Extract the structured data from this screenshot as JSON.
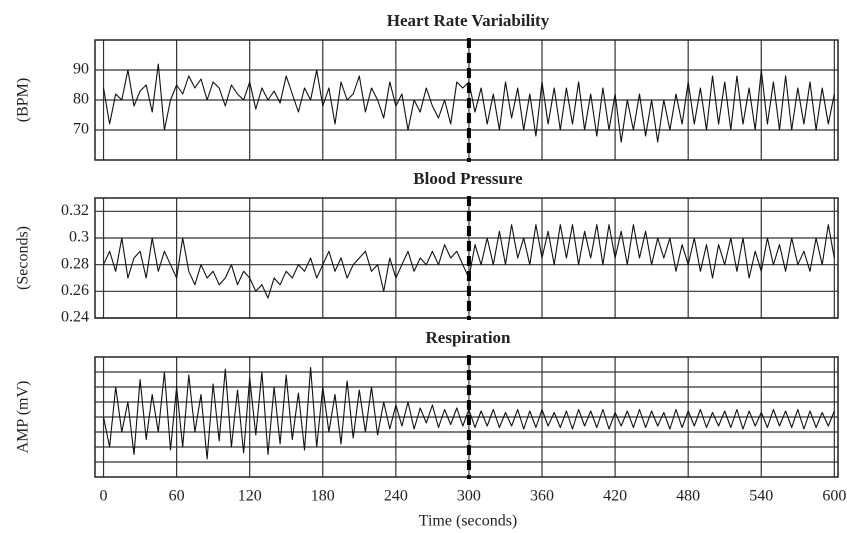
{
  "chart_data": [
    {
      "type": "line",
      "title": "Heart Rate Variability",
      "ylabel": "(BPM)",
      "x": [
        0,
        5,
        10,
        15,
        20,
        25,
        30,
        35,
        40,
        45,
        50,
        55,
        60,
        65,
        70,
        75,
        80,
        85,
        90,
        95,
        100,
        105,
        110,
        115,
        120,
        125,
        130,
        135,
        140,
        145,
        150,
        155,
        160,
        165,
        170,
        175,
        180,
        185,
        190,
        195,
        200,
        205,
        210,
        215,
        220,
        225,
        230,
        235,
        240,
        245,
        250,
        255,
        260,
        265,
        270,
        275,
        280,
        285,
        290,
        295,
        300,
        305,
        310,
        315,
        320,
        325,
        330,
        335,
        340,
        345,
        350,
        355,
        360,
        365,
        370,
        375,
        380,
        385,
        390,
        395,
        400,
        405,
        410,
        415,
        420,
        425,
        430,
        435,
        440,
        445,
        450,
        455,
        460,
        465,
        470,
        475,
        480,
        485,
        490,
        495,
        500,
        505,
        510,
        515,
        520,
        525,
        530,
        535,
        540,
        545,
        550,
        555,
        560,
        565,
        570,
        575,
        580,
        585,
        590,
        595,
        600
      ],
      "values": [
        84,
        72,
        82,
        80,
        90,
        78,
        83,
        85,
        76,
        92,
        70,
        80,
        85,
        82,
        88,
        84,
        87,
        80,
        86,
        84,
        78,
        85,
        82,
        80,
        86,
        77,
        84,
        80,
        83,
        79,
        88,
        82,
        76,
        84,
        80,
        90,
        78,
        84,
        72,
        86,
        80,
        82,
        88,
        76,
        84,
        80,
        74,
        86,
        78,
        82,
        70,
        80,
        76,
        84,
        78,
        74,
        80,
        72,
        86,
        84,
        86,
        76,
        84,
        72,
        82,
        70,
        86,
        74,
        84,
        70,
        82,
        68,
        86,
        72,
        84,
        70,
        84,
        72,
        86,
        70,
        82,
        68,
        84,
        70,
        82,
        66,
        80,
        70,
        82,
        68,
        80,
        66,
        80,
        70,
        82,
        72,
        86,
        72,
        84,
        70,
        88,
        72,
        86,
        70,
        88,
        72,
        84,
        70,
        90,
        72,
        86,
        70,
        88,
        70,
        84,
        72,
        86,
        70,
        84,
        72,
        82
      ],
      "color": "#111111",
      "xlim": [
        -7,
        603
      ],
      "xticks": [
        0,
        60,
        120,
        180,
        240,
        300,
        360,
        420,
        480,
        540,
        600
      ],
      "ylim": [
        60,
        100
      ],
      "yticks": [
        70,
        80,
        90
      ],
      "show_y_tick_labels": true,
      "show_x_tick_labels": false,
      "grid": true,
      "marker_x": 300
    },
    {
      "type": "line",
      "title": "Blood Pressure",
      "ylabel": "(Seconds)",
      "x": [
        0,
        5,
        10,
        15,
        20,
        25,
        30,
        35,
        40,
        45,
        50,
        55,
        60,
        65,
        70,
        75,
        80,
        85,
        90,
        95,
        100,
        105,
        110,
        115,
        120,
        125,
        130,
        135,
        140,
        145,
        150,
        155,
        160,
        165,
        170,
        175,
        180,
        185,
        190,
        195,
        200,
        205,
        210,
        215,
        220,
        225,
        230,
        235,
        240,
        245,
        250,
        255,
        260,
        265,
        270,
        275,
        280,
        285,
        290,
        295,
        300,
        305,
        310,
        315,
        320,
        325,
        330,
        335,
        340,
        345,
        350,
        355,
        360,
        365,
        370,
        375,
        380,
        385,
        390,
        395,
        400,
        405,
        410,
        415,
        420,
        425,
        430,
        435,
        440,
        445,
        450,
        455,
        460,
        465,
        470,
        475,
        480,
        485,
        490,
        495,
        500,
        505,
        510,
        515,
        520,
        525,
        530,
        535,
        540,
        545,
        550,
        555,
        560,
        565,
        570,
        575,
        580,
        585,
        590,
        595,
        600
      ],
      "values": [
        0.28,
        0.29,
        0.275,
        0.3,
        0.27,
        0.285,
        0.29,
        0.27,
        0.3,
        0.275,
        0.29,
        0.28,
        0.27,
        0.3,
        0.275,
        0.265,
        0.28,
        0.27,
        0.275,
        0.265,
        0.27,
        0.28,
        0.265,
        0.275,
        0.27,
        0.26,
        0.265,
        0.255,
        0.27,
        0.265,
        0.275,
        0.27,
        0.28,
        0.275,
        0.285,
        0.27,
        0.28,
        0.29,
        0.275,
        0.285,
        0.27,
        0.28,
        0.285,
        0.29,
        0.275,
        0.28,
        0.26,
        0.285,
        0.27,
        0.28,
        0.29,
        0.275,
        0.285,
        0.28,
        0.29,
        0.28,
        0.295,
        0.285,
        0.29,
        0.28,
        0.27,
        0.295,
        0.28,
        0.3,
        0.28,
        0.305,
        0.28,
        0.31,
        0.285,
        0.3,
        0.28,
        0.31,
        0.285,
        0.305,
        0.28,
        0.31,
        0.285,
        0.31,
        0.28,
        0.305,
        0.285,
        0.31,
        0.28,
        0.31,
        0.285,
        0.305,
        0.28,
        0.31,
        0.285,
        0.305,
        0.28,
        0.3,
        0.285,
        0.3,
        0.275,
        0.295,
        0.28,
        0.3,
        0.275,
        0.295,
        0.27,
        0.295,
        0.28,
        0.3,
        0.275,
        0.3,
        0.27,
        0.29,
        0.275,
        0.3,
        0.28,
        0.295,
        0.275,
        0.3,
        0.28,
        0.29,
        0.275,
        0.3,
        0.28,
        0.31,
        0.285
      ],
      "color": "#111111",
      "xlim": [
        -7,
        603
      ],
      "xticks": [
        0,
        60,
        120,
        180,
        240,
        300,
        360,
        420,
        480,
        540,
        600
      ],
      "ylim": [
        0.24,
        0.33
      ],
      "yticks": [
        0.24,
        0.26,
        0.28,
        0.3,
        0.32
      ],
      "show_y_tick_labels": true,
      "show_x_tick_labels": false,
      "grid": true,
      "marker_x": 300
    },
    {
      "type": "line",
      "title": "Respiration",
      "ylabel": "AMP (mV)",
      "xlabel": "Time (seconds)",
      "x": [
        0,
        5,
        10,
        15,
        20,
        25,
        30,
        35,
        40,
        45,
        50,
        55,
        60,
        65,
        70,
        75,
        80,
        85,
        90,
        95,
        100,
        105,
        110,
        115,
        120,
        125,
        130,
        135,
        140,
        145,
        150,
        155,
        160,
        165,
        170,
        175,
        180,
        185,
        190,
        195,
        200,
        205,
        210,
        215,
        220,
        225,
        230,
        235,
        240,
        245,
        250,
        255,
        260,
        265,
        270,
        275,
        280,
        285,
        290,
        295,
        300,
        305,
        310,
        315,
        320,
        325,
        330,
        335,
        340,
        345,
        350,
        355,
        360,
        365,
        370,
        375,
        380,
        385,
        390,
        395,
        400,
        405,
        410,
        415,
        420,
        425,
        430,
        435,
        440,
        445,
        450,
        455,
        460,
        465,
        470,
        475,
        480,
        485,
        490,
        495,
        500,
        505,
        510,
        515,
        520,
        525,
        530,
        535,
        540,
        545,
        550,
        555,
        560,
        565,
        570,
        575,
        580,
        585,
        590,
        595,
        600
      ],
      "values": [
        4,
        2,
        6,
        3,
        5,
        1.5,
        6.5,
        2.5,
        5.5,
        3,
        7,
        1.8,
        6,
        2,
        6.8,
        3,
        5.5,
        1.2,
        6.2,
        2.4,
        7.2,
        2,
        5.8,
        1.6,
        6.6,
        2.8,
        7,
        1.5,
        6,
        2.2,
        6.8,
        2.5,
        5.6,
        1.8,
        7.3,
        2,
        6,
        3,
        5.5,
        2.2,
        6.4,
        2.6,
        5.8,
        3,
        6,
        2.8,
        5,
        3.2,
        4.8,
        3.4,
        5,
        3.2,
        4.6,
        3.6,
        4.8,
        3.3,
        4.5,
        3.5,
        4.6,
        3.4,
        4.5,
        3.3,
        4.4,
        3.4,
        4.5,
        3.3,
        4.3,
        3.4,
        4.5,
        3.2,
        4.4,
        3.3,
        4.5,
        3.4,
        4.3,
        3.3,
        4.4,
        3.2,
        4.5,
        3.4,
        4.4,
        3.3,
        4.5,
        3.2,
        4.3,
        3.4,
        4.4,
        3.3,
        4.5,
        3.3,
        4.4,
        3.4,
        4.3,
        3.2,
        4.5,
        3.3,
        4.4,
        3.4,
        4.5,
        3.3,
        4.3,
        3.4,
        4.4,
        3.3,
        4.5,
        3.2,
        4.4,
        3.4,
        4.3,
        3.3,
        4.5,
        3.4,
        4.4,
        3.3,
        4.5,
        3.2,
        4.4,
        3.3,
        4.3,
        3.4,
        4.4
      ],
      "color": "#111111",
      "xlim": [
        -7,
        603
      ],
      "xticks": [
        0,
        60,
        120,
        180,
        240,
        300,
        360,
        420,
        480,
        540,
        600
      ],
      "ylim": [
        0,
        8
      ],
      "yticks": [
        1,
        2,
        3,
        4,
        5,
        6,
        7
      ],
      "show_y_tick_labels": false,
      "show_x_tick_labels": true,
      "grid": true,
      "marker_x": 300
    }
  ]
}
